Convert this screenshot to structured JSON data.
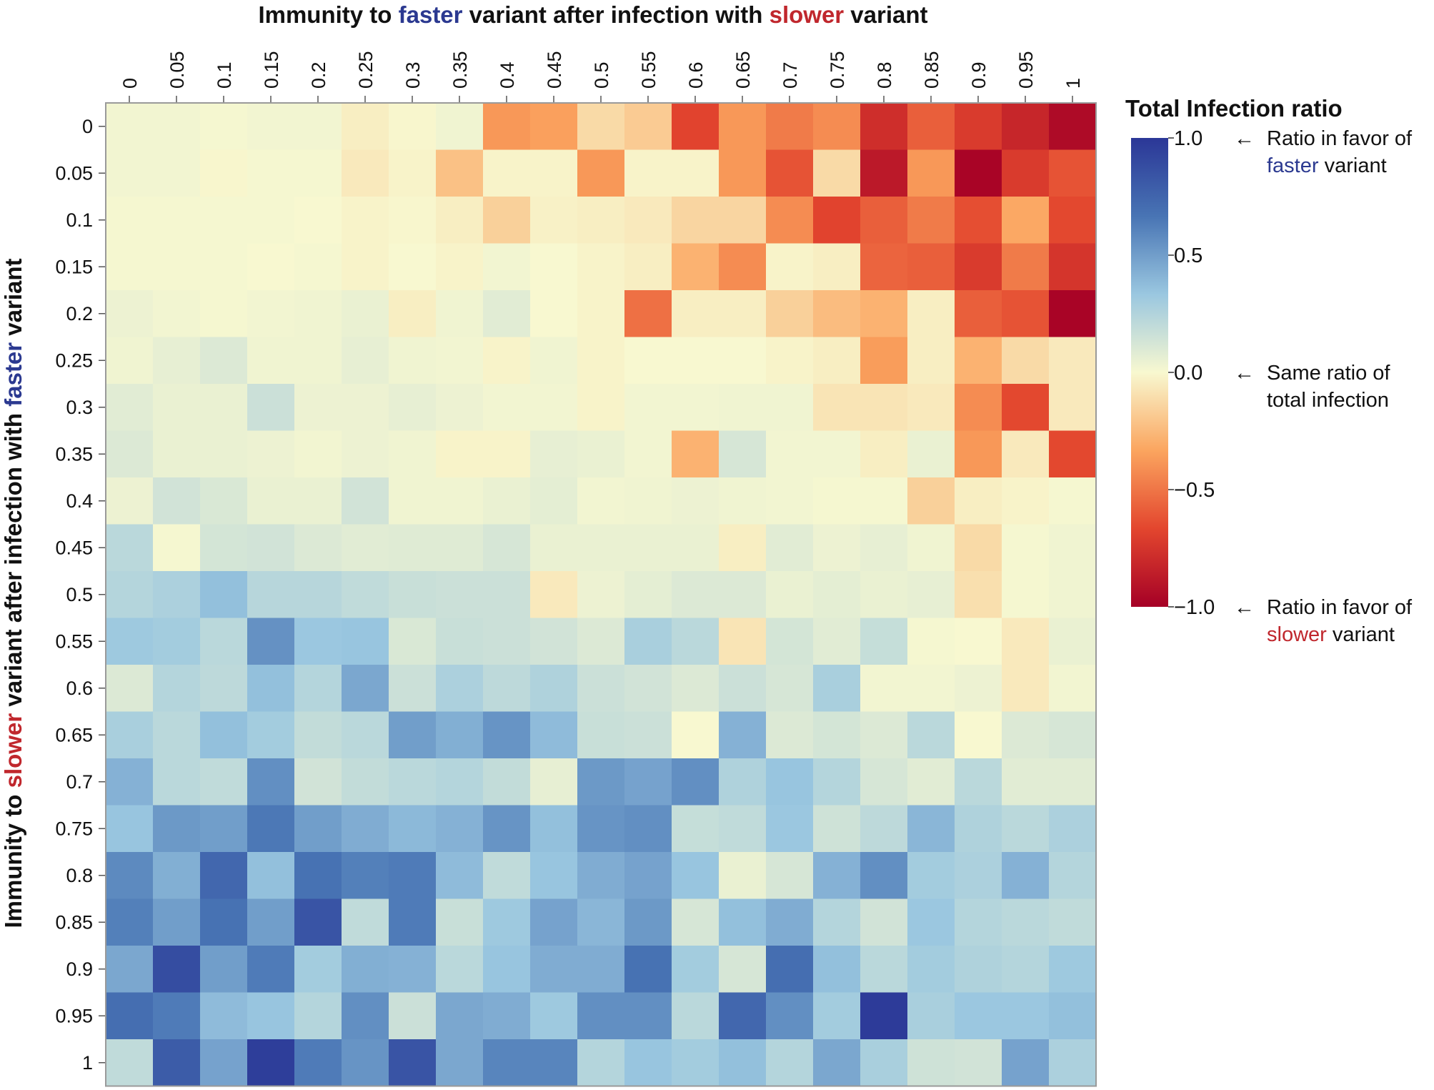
{
  "chart_data": {
    "type": "heatmap",
    "title": {
      "parts": [
        {
          "text": "Immunity to ",
          "color": "#111111"
        },
        {
          "text": "faster",
          "color": "#2b3990"
        },
        {
          "text": " variant after infection with ",
          "color": "#111111"
        },
        {
          "text": "slower",
          "color": "#c0272d"
        },
        {
          "text": " variant",
          "color": "#111111"
        }
      ]
    },
    "ylabel": {
      "parts": [
        {
          "text": "Immunity to ",
          "color": "#111111"
        },
        {
          "text": "slower",
          "color": "#c0272d"
        },
        {
          "text": " variant after infection with ",
          "color": "#111111"
        },
        {
          "text": "faster",
          "color": "#2b3990"
        },
        {
          "text": " variant",
          "color": "#111111"
        }
      ]
    },
    "x_labels": [
      "0",
      "0.05",
      "0.1",
      "0.15",
      "0.2",
      "0.25",
      "0.3",
      "0.35",
      "0.4",
      "0.45",
      "0.5",
      "0.55",
      "0.6",
      "0.65",
      "0.7",
      "0.75",
      "0.8",
      "0.85",
      "0.9",
      "0.95",
      "1"
    ],
    "y_labels": [
      "0",
      "0.05",
      "0.1",
      "0.15",
      "0.2",
      "0.25",
      "0.3",
      "0.35",
      "0.4",
      "0.45",
      "0.5",
      "0.55",
      "0.6",
      "0.65",
      "0.7",
      "0.75",
      "0.8",
      "0.85",
      "0.9",
      "0.95",
      "1"
    ],
    "values": [
      [
        0.02,
        0.02,
        0.01,
        0.02,
        0.02,
        -0.04,
        -0.01,
        0.03,
        -0.38,
        -0.35,
        -0.12,
        -0.18,
        -0.68,
        -0.38,
        -0.48,
        -0.42,
        -0.78,
        -0.58,
        -0.72,
        -0.82,
        -0.95
      ],
      [
        0.02,
        0.02,
        -0.01,
        0.01,
        0.01,
        -0.06,
        -0.02,
        -0.22,
        -0.02,
        -0.02,
        -0.38,
        -0.02,
        -0.02,
        -0.38,
        -0.62,
        -0.12,
        -0.88,
        -0.38,
        -0.98,
        -0.72,
        -0.62
      ],
      [
        0.01,
        0.01,
        0.01,
        0.01,
        0.0,
        -0.02,
        -0.01,
        -0.04,
        -0.16,
        -0.03,
        -0.04,
        -0.06,
        -0.14,
        -0.14,
        -0.42,
        -0.68,
        -0.58,
        -0.48,
        -0.64,
        -0.32,
        -0.66
      ],
      [
        0.01,
        0.01,
        0.01,
        0.0,
        0.01,
        -0.02,
        0.0,
        -0.02,
        0.02,
        0.0,
        -0.02,
        -0.04,
        -0.28,
        -0.42,
        -0.02,
        -0.04,
        -0.56,
        -0.58,
        -0.72,
        -0.48,
        -0.75
      ],
      [
        0.04,
        0.02,
        0.01,
        0.02,
        0.03,
        0.05,
        -0.04,
        0.03,
        0.08,
        0.0,
        -0.02,
        -0.52,
        -0.04,
        -0.04,
        -0.16,
        -0.24,
        -0.28,
        -0.04,
        -0.58,
        -0.62,
        -0.98
      ],
      [
        0.03,
        0.06,
        0.1,
        0.03,
        0.03,
        0.06,
        0.03,
        0.02,
        -0.02,
        0.03,
        -0.02,
        0.0,
        0.0,
        0.0,
        -0.02,
        -0.04,
        -0.36,
        -0.04,
        -0.28,
        -0.12,
        -0.06
      ],
      [
        0.08,
        0.05,
        0.05,
        0.16,
        0.04,
        0.04,
        0.06,
        0.04,
        0.02,
        0.02,
        -0.02,
        0.02,
        0.02,
        0.03,
        0.03,
        -0.08,
        -0.08,
        -0.06,
        -0.42,
        -0.66,
        -0.06
      ],
      [
        0.1,
        0.05,
        0.05,
        0.04,
        0.02,
        0.04,
        0.03,
        -0.02,
        -0.02,
        0.06,
        0.05,
        0.02,
        -0.28,
        0.12,
        0.02,
        0.02,
        -0.04,
        0.05,
        -0.38,
        -0.06,
        -0.66
      ],
      [
        0.04,
        0.14,
        0.11,
        0.05,
        0.05,
        0.14,
        0.03,
        0.03,
        0.05,
        0.07,
        0.02,
        0.03,
        0.04,
        0.03,
        0.02,
        0.01,
        0.01,
        -0.16,
        -0.04,
        -0.02,
        0.01
      ],
      [
        0.22,
        0.01,
        0.13,
        0.14,
        0.1,
        0.08,
        0.09,
        0.09,
        0.12,
        0.05,
        0.05,
        0.05,
        0.05,
        -0.04,
        0.08,
        0.04,
        0.06,
        0.03,
        -0.12,
        0.01,
        0.03
      ],
      [
        0.24,
        0.27,
        0.36,
        0.23,
        0.23,
        0.2,
        0.17,
        0.16,
        0.16,
        -0.06,
        0.04,
        0.07,
        0.1,
        0.1,
        0.05,
        0.07,
        0.05,
        0.06,
        -0.1,
        0.01,
        0.03
      ],
      [
        0.32,
        0.3,
        0.22,
        0.55,
        0.33,
        0.34,
        0.11,
        0.17,
        0.16,
        0.14,
        0.1,
        0.28,
        0.22,
        -0.08,
        0.13,
        0.08,
        0.18,
        0.01,
        0.0,
        -0.06,
        0.05
      ],
      [
        0.1,
        0.24,
        0.21,
        0.36,
        0.24,
        0.46,
        0.16,
        0.27,
        0.21,
        0.26,
        0.16,
        0.14,
        0.1,
        0.16,
        0.12,
        0.28,
        0.02,
        0.02,
        0.04,
        -0.06,
        0.02
      ],
      [
        0.28,
        0.22,
        0.36,
        0.3,
        0.19,
        0.22,
        0.5,
        0.43,
        0.54,
        0.38,
        0.17,
        0.16,
        0.0,
        0.42,
        0.1,
        0.13,
        0.1,
        0.22,
        0.0,
        0.1,
        0.12
      ],
      [
        0.42,
        0.22,
        0.2,
        0.56,
        0.14,
        0.19,
        0.22,
        0.24,
        0.19,
        0.06,
        0.52,
        0.48,
        0.56,
        0.26,
        0.34,
        0.24,
        0.12,
        0.08,
        0.22,
        0.08,
        0.08
      ],
      [
        0.34,
        0.52,
        0.5,
        0.65,
        0.5,
        0.44,
        0.39,
        0.42,
        0.54,
        0.36,
        0.54,
        0.56,
        0.18,
        0.2,
        0.33,
        0.15,
        0.21,
        0.4,
        0.26,
        0.22,
        0.27
      ],
      [
        0.58,
        0.43,
        0.74,
        0.36,
        0.68,
        0.62,
        0.64,
        0.38,
        0.2,
        0.34,
        0.44,
        0.48,
        0.34,
        0.05,
        0.12,
        0.42,
        0.56,
        0.3,
        0.27,
        0.42,
        0.24
      ],
      [
        0.62,
        0.5,
        0.68,
        0.5,
        0.84,
        0.2,
        0.64,
        0.17,
        0.32,
        0.48,
        0.4,
        0.52,
        0.12,
        0.36,
        0.44,
        0.24,
        0.14,
        0.33,
        0.24,
        0.22,
        0.2
      ],
      [
        0.46,
        0.88,
        0.5,
        0.64,
        0.3,
        0.43,
        0.42,
        0.22,
        0.34,
        0.44,
        0.44,
        0.68,
        0.3,
        0.12,
        0.7,
        0.36,
        0.22,
        0.3,
        0.26,
        0.24,
        0.32
      ],
      [
        0.7,
        0.64,
        0.38,
        0.34,
        0.24,
        0.56,
        0.16,
        0.46,
        0.44,
        0.32,
        0.56,
        0.56,
        0.22,
        0.74,
        0.56,
        0.3,
        0.98,
        0.28,
        0.33,
        0.33,
        0.36
      ],
      [
        0.2,
        0.8,
        0.48,
        0.96,
        0.64,
        0.54,
        0.84,
        0.46,
        0.6,
        0.6,
        0.24,
        0.34,
        0.3,
        0.36,
        0.24,
        0.46,
        0.28,
        0.15,
        0.14,
        0.48,
        0.27
      ]
    ],
    "colorbar": {
      "title": "Total Infection ratio",
      "range": [
        -1.0,
        1.0
      ],
      "ticks": [
        "1.0",
        "0.5",
        "0.0",
        "−0.5",
        "−1.0"
      ],
      "tick_values": [
        1.0,
        0.5,
        0.0,
        -0.5,
        -1.0
      ],
      "colors": [
        "#2b3797",
        "#4874b4",
        "#9ac7e0",
        "#f8f8d0",
        "#fba55f",
        "#e3462e",
        "#a50026"
      ]
    },
    "annotations": [
      {
        "arrow": "←",
        "lines": [
          [
            {
              "text": "Ratio in favor of",
              "color": "#111111"
            }
          ],
          [
            {
              "text": "faster",
              "color": "#2b3990"
            },
            {
              "text": " variant",
              "color": "#111111"
            }
          ]
        ],
        "value": 1.0
      },
      {
        "arrow": "←",
        "lines": [
          [
            {
              "text": "Same ratio of",
              "color": "#111111"
            }
          ],
          [
            {
              "text": "total infection",
              "color": "#111111"
            }
          ]
        ],
        "value": 0.0
      },
      {
        "arrow": "←",
        "lines": [
          [
            {
              "text": "Ratio in favor of",
              "color": "#111111"
            }
          ],
          [
            {
              "text": "slower",
              "color": "#c0272d"
            },
            {
              "text": " variant",
              "color": "#111111"
            }
          ]
        ],
        "value": -1.0
      }
    ],
    "grid": false,
    "legend_placement": "right"
  }
}
